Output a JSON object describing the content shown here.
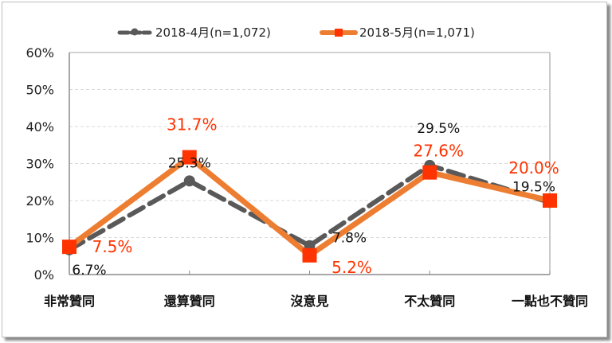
{
  "chart_data": {
    "type": "line",
    "title": "",
    "xlabel": "",
    "ylabel": "",
    "ylim": [
      0,
      60
    ],
    "yticks": [
      "0%",
      "10%",
      "20%",
      "30%",
      "40%",
      "50%",
      "60%"
    ],
    "ytick_values": [
      0,
      10,
      20,
      30,
      40,
      50,
      60
    ],
    "grid": true,
    "legend_position": "top",
    "categories": [
      "非常贊同",
      "還算贊同",
      "沒意見",
      "不太贊同",
      "一點也不贊同"
    ],
    "series": [
      {
        "name": "2018-4月(n=1,072)",
        "values": [
          6.7,
          25.3,
          7.8,
          29.5,
          19.5
        ],
        "labels": [
          "6.7%",
          "25.3%",
          "7.8%",
          "29.5%",
          "19.5%"
        ],
        "color": "#595959",
        "style": "dashed"
      },
      {
        "name": "2018-5月(n=1,071)",
        "values": [
          7.5,
          31.7,
          5.2,
          27.6,
          20.0
        ],
        "labels": [
          "7.5%",
          "31.7%",
          "5.2%",
          "27.6%",
          "20.0%"
        ],
        "color": "#ed7d31",
        "marker_color": "#ff3300",
        "style": "solid"
      }
    ]
  }
}
